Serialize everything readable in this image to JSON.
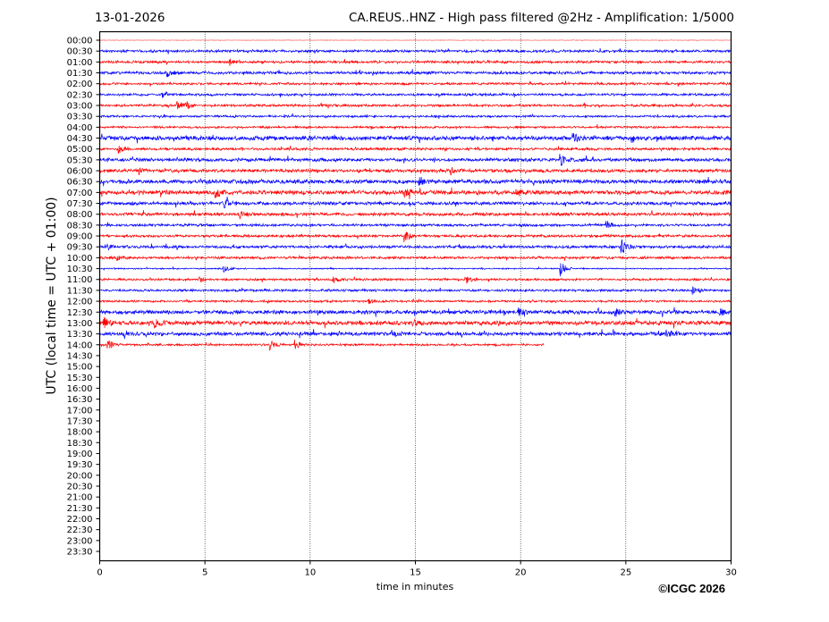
{
  "header": {
    "date": "13-01-2026",
    "title": "CA.REUS..HNZ - High pass filtered @2Hz - Amplification: 1/5000"
  },
  "copyright": "©ICGC 2026",
  "chart_data": {
    "type": "line",
    "subtype": "helicorder",
    "xlabel": "time in minutes",
    "ylabel": "UTC (local time = UTC + 01:00)",
    "xlim": [
      0,
      30
    ],
    "xticks": [
      "0",
      "5",
      "10",
      "15",
      "20",
      "25",
      "30"
    ],
    "grid": "vertical dotted at each x tick",
    "row_labels": [
      "00:00",
      "00:30",
      "01:00",
      "01:30",
      "02:00",
      "02:30",
      "03:00",
      "03:30",
      "04:00",
      "04:30",
      "05:00",
      "05:30",
      "06:00",
      "06:30",
      "07:00",
      "07:30",
      "08:00",
      "08:30",
      "09:00",
      "09:30",
      "10:00",
      "10:30",
      "11:00",
      "11:30",
      "12:00",
      "12:30",
      "13:00",
      "13:30",
      "14:00",
      "14:30",
      "15:00",
      "15:30",
      "16:00",
      "16:30",
      "17:00",
      "17:30",
      "18:00",
      "18:30",
      "19:00",
      "19:30",
      "20:00",
      "20:30",
      "21:00",
      "21:30",
      "22:00",
      "22:30",
      "23:00",
      "23:30"
    ],
    "colors": [
      "#ff0000",
      "#0000ff"
    ],
    "rows_with_data": 29,
    "last_row_end_minute": 21.1,
    "noise_levels": [
      0.3,
      1.2,
      1.2,
      1.3,
      1.1,
      1.1,
      1.2,
      1.0,
      1.0,
      2.0,
      1.2,
      1.6,
      1.6,
      2.0,
      2.0,
      1.6,
      1.5,
      1.2,
      1.2,
      1.3,
      1.2,
      0.6,
      1.0,
      1.1,
      1.0,
      1.8,
      2.0,
      1.8,
      1.0
    ],
    "events": [
      [
        "01:00",
        6.2,
        4
      ],
      [
        "01:30",
        3.2,
        4
      ],
      [
        "02:30",
        3.0,
        3
      ],
      [
        "03:00",
        3.7,
        6
      ],
      [
        "03:00",
        4.1,
        4
      ],
      [
        "04:30",
        22.5,
        5
      ],
      [
        "04:30",
        25.3,
        4
      ],
      [
        "05:00",
        0.9,
        4
      ],
      [
        "05:30",
        21.9,
        6
      ],
      [
        "06:00",
        1.9,
        4
      ],
      [
        "06:00",
        16.7,
        4
      ],
      [
        "06:30",
        15.2,
        5
      ],
      [
        "07:00",
        5.5,
        5
      ],
      [
        "07:00",
        14.5,
        5
      ],
      [
        "07:00",
        19.8,
        5
      ],
      [
        "07:30",
        5.9,
        5
      ],
      [
        "08:00",
        6.7,
        4
      ],
      [
        "08:30",
        24.1,
        5
      ],
      [
        "09:00",
        14.5,
        6
      ],
      [
        "09:30",
        0.3,
        4
      ],
      [
        "09:30",
        24.8,
        9
      ],
      [
        "10:00",
        0.8,
        4
      ],
      [
        "10:30",
        5.9,
        4
      ],
      [
        "10:30",
        21.9,
        9
      ],
      [
        "11:00",
        4.7,
        4
      ],
      [
        "11:00",
        11.1,
        5
      ],
      [
        "11:00",
        17.4,
        4
      ],
      [
        "11:30",
        28.2,
        4
      ],
      [
        "12:00",
        12.8,
        3
      ],
      [
        "12:30",
        19.9,
        5
      ],
      [
        "12:30",
        24.5,
        4
      ],
      [
        "12:30",
        29.5,
        4
      ],
      [
        "13:00",
        0.2,
        5
      ],
      [
        "13:00",
        2.6,
        5
      ],
      [
        "13:00",
        14.9,
        4
      ],
      [
        "13:30",
        13.9,
        5
      ],
      [
        "13:30",
        27.0,
        4
      ],
      [
        "14:00",
        0.4,
        6
      ],
      [
        "14:00",
        8.1,
        5
      ],
      [
        "14:00",
        9.3,
        5
      ]
    ]
  }
}
